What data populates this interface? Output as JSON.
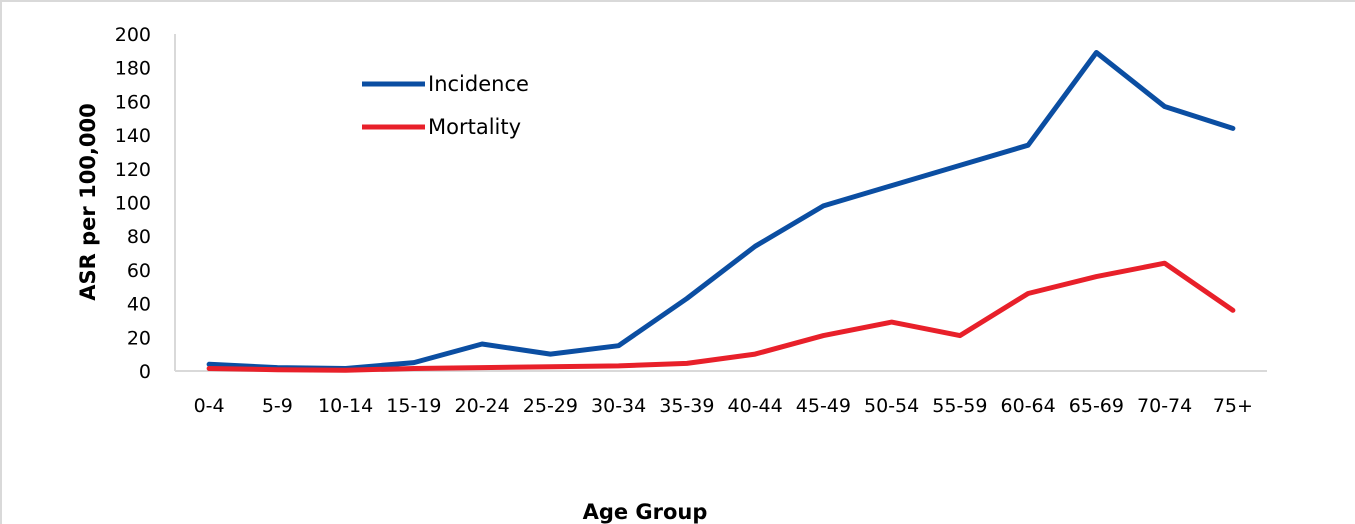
{
  "chart_data": {
    "type": "line",
    "xlabel": "Age Group",
    "ylabel": "ASR per 100,000",
    "ylim": [
      0,
      200
    ],
    "yticks": [
      "0",
      "20",
      "40",
      "60",
      "80",
      "100",
      "120",
      "140",
      "160",
      "180",
      "200"
    ],
    "categories": [
      "0-4",
      "5-9",
      "10-14",
      "15-19",
      "20-24",
      "25-29",
      "30-34",
      "35-39",
      "40-44",
      "45-49",
      "50-54",
      "55-59",
      "60-64",
      "65-69",
      "70-74",
      "75+"
    ],
    "series": [
      {
        "name": "Incidence",
        "color": "#0b4ea2",
        "values": [
          4,
          2,
          1.5,
          5,
          16,
          10,
          15,
          43,
          74,
          98,
          110,
          122,
          134,
          189,
          157,
          144
        ]
      },
      {
        "name": "Mortality",
        "color": "#e8202a",
        "values": [
          1.5,
          0.8,
          0.5,
          1.5,
          2,
          2.5,
          3,
          4.5,
          10,
          21,
          29,
          21,
          46,
          56,
          64,
          36
        ]
      }
    ],
    "grid": false,
    "legend_position": "top-left-inside"
  }
}
